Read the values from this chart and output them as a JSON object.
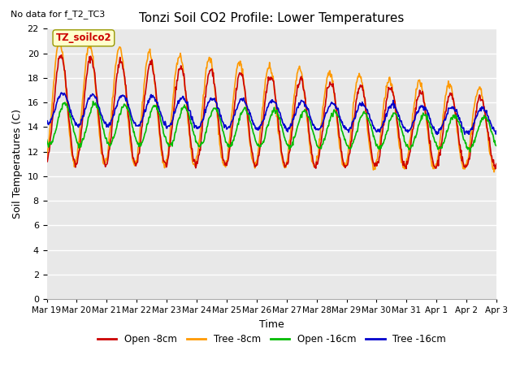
{
  "title": "Tonzi Soil CO2 Profile: Lower Temperatures",
  "subtitle": "No data for f_T2_TC3",
  "legend_label": "TZ_soilco2",
  "xlabel": "Time",
  "ylabel": "Soil Temperatures (C)",
  "ylim": [
    0,
    22
  ],
  "yticks": [
    0,
    2,
    4,
    6,
    8,
    10,
    12,
    14,
    16,
    18,
    20,
    22
  ],
  "xlim": [
    0,
    15
  ],
  "xtick_labels": [
    "Mar 19",
    "Mar 20",
    "Mar 21",
    "Mar 22",
    "Mar 23",
    "Mar 24",
    "Mar 25",
    "Mar 26",
    "Mar 27",
    "Mar 28",
    "Mar 29",
    "Mar 30",
    "Mar 31",
    "Apr 1",
    "Apr 2",
    "Apr 3"
  ],
  "bg_color": "#e8e8e8",
  "grid_color": "white",
  "series": {
    "open_8": {
      "label": "Open -8cm",
      "color": "#cc0000"
    },
    "tree_8": {
      "label": "Tree -8cm",
      "color": "#ff9900"
    },
    "open_16": {
      "label": "Open -16cm",
      "color": "#00bb00"
    },
    "tree_16": {
      "label": "Tree -16cm",
      "color": "#0000cc"
    }
  },
  "figsize": [
    6.4,
    4.8
  ],
  "dpi": 100
}
